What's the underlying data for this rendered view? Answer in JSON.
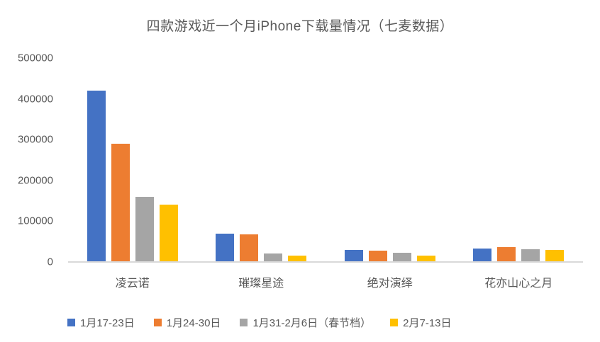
{
  "title": "四款游戏近一个月iPhone下载量情况（七麦数据）",
  "colors": {
    "series_blue": "#4472C4",
    "series_orange": "#ED7D31",
    "series_gray": "#A5A5A5",
    "series_yellow": "#FFC000",
    "text": "#595959",
    "axis_line": "#D9D9D9",
    "background": "#FFFFFF"
  },
  "chart_data": {
    "type": "bar",
    "title": "四款游戏近一个月iPhone下载量情况（七麦数据）",
    "categories": [
      "凌云诺",
      "璀璨星途",
      "绝对演绎",
      "花亦山心之月"
    ],
    "series": [
      {
        "name": "1月17-23日",
        "color": "#4472C4",
        "values": [
          420000,
          70000,
          30000,
          33000
        ]
      },
      {
        "name": "1月24-30日",
        "color": "#ED7D31",
        "values": [
          290000,
          67000,
          27000,
          36000
        ]
      },
      {
        "name": "1月31-2月6日（春节档）",
        "color": "#A5A5A5",
        "values": [
          160000,
          21000,
          23000,
          31000
        ]
      },
      {
        "name": "2月7-13日",
        "color": "#FFC000",
        "values": [
          140000,
          15000,
          15000,
          30000
        ]
      }
    ],
    "xlabel": "",
    "ylabel": "",
    "ylim": [
      0,
      500000
    ],
    "y_ticks": [
      0,
      100000,
      200000,
      300000,
      400000,
      500000
    ],
    "y_tick_labels": [
      "0",
      "100000",
      "200000",
      "300000",
      "400000",
      "500000"
    ],
    "grid": false,
    "legend_position": "bottom"
  }
}
